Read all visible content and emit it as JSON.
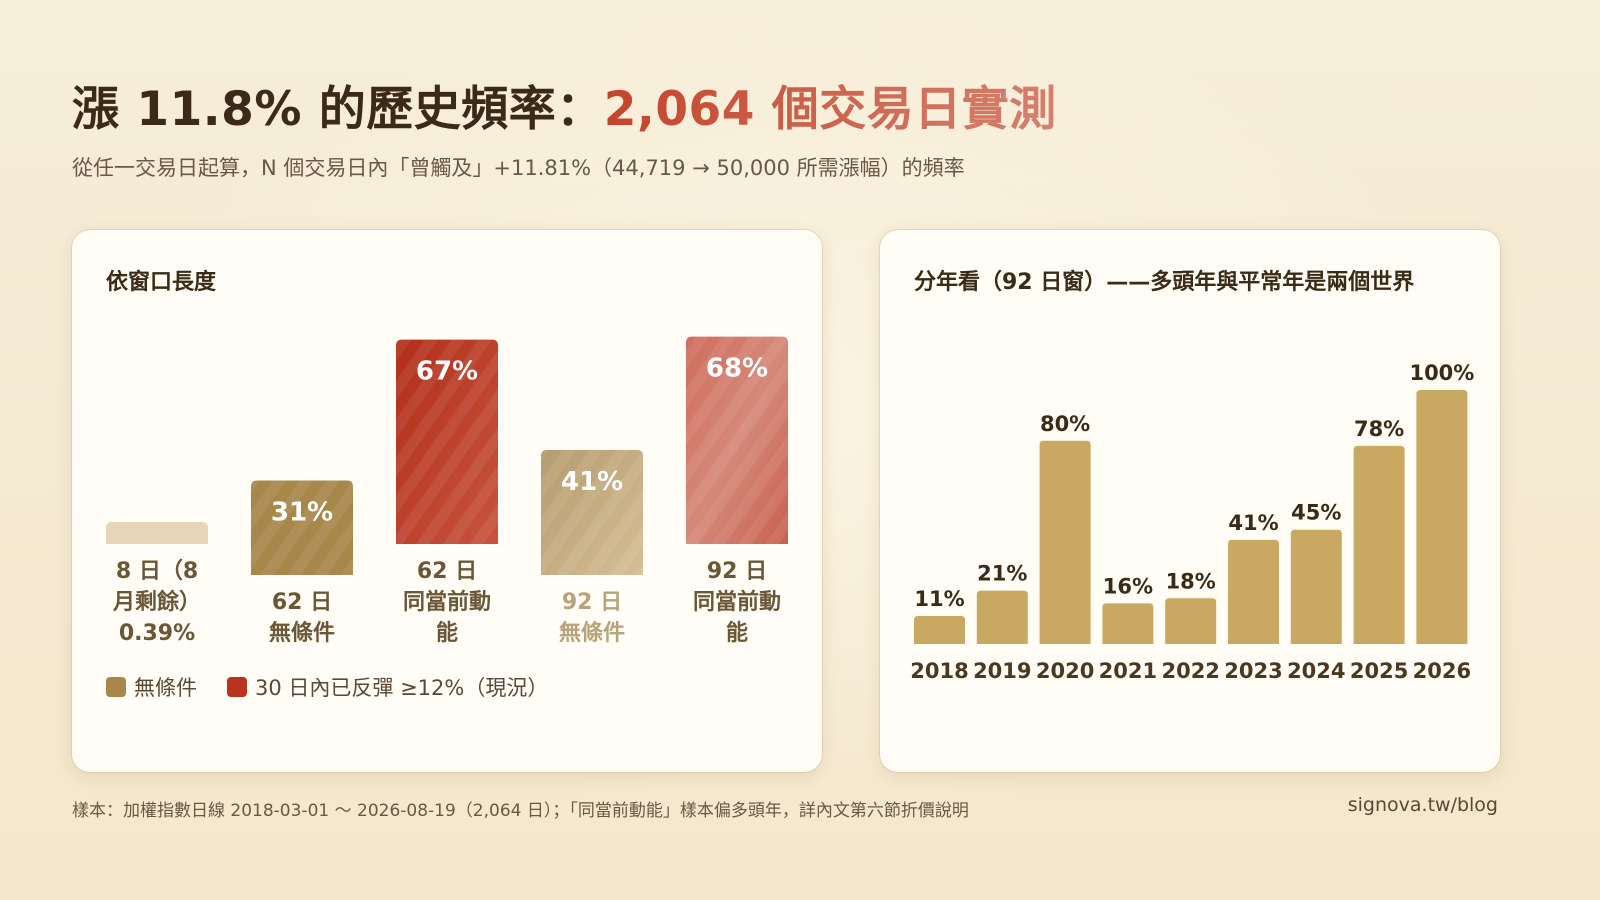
{
  "header": {
    "title_prefix": "漲 11.8% 的歷史頻率：",
    "title_highlight": "2,064 個交易日實測",
    "subtitle": "從任一交易日起算，N 個交易日內「曾觸及」+11.81%（44,719 → 50,000 所需漲幅）的頻率"
  },
  "left_panel": {
    "title": "依窗口長度"
  },
  "right_panel": {
    "title": "分年看（92 日窗）——多頭年與平常年是兩個世界"
  },
  "legend": {
    "items": [
      {
        "label": "無條件",
        "color": "#a8874b"
      },
      {
        "label": "30 日內已反彈 ≥12%（現況）",
        "color": "#b8341f"
      }
    ]
  },
  "chart_data": [
    {
      "type": "bar",
      "title": "依窗口長度",
      "categories": [
        [
          "8 日（8",
          "月剩餘）",
          "0.39%"
        ],
        [
          "62 日",
          "無條件"
        ],
        [
          "62 日",
          "同當前動",
          "能"
        ],
        [
          "92 日",
          "無條件"
        ],
        [
          "92 日",
          "同當前動",
          "能"
        ]
      ],
      "values": [
        0.39,
        31,
        67,
        41,
        68
      ],
      "labels": [
        "",
        "31%",
        "67%",
        "41%",
        "68%"
      ],
      "series_kind": [
        "unconditional",
        "unconditional",
        "momentum",
        "unconditional",
        "momentum"
      ],
      "colors": [
        "#e4d6b6",
        "#a8874b",
        "#b8341f",
        "#c8ad80",
        "#d2796a"
      ],
      "ylim": [
        0,
        100
      ]
    },
    {
      "type": "bar",
      "title": "分年看（92 日窗）——多頭年與平常年是兩個世界",
      "categories": [
        "2018",
        "2019",
        "2020",
        "2021",
        "2022",
        "2023",
        "2024",
        "2025",
        "2026"
      ],
      "values": [
        11,
        21,
        80,
        16,
        18,
        41,
        45,
        78,
        100
      ],
      "labels": [
        "11%",
        "21%",
        "80%",
        "16%",
        "18%",
        "41%",
        "45%",
        "78%",
        "100%"
      ],
      "color": "#c9a862",
      "ylim": [
        0,
        100
      ]
    }
  ],
  "footer": {
    "note": "樣本：加權指數日線 2018-03-01 ～ 2026-08-19（2,064 日）；「同當前動能」樣本偏多頭年，詳內文第六節折價說明",
    "site": "signova.tw/blog"
  }
}
